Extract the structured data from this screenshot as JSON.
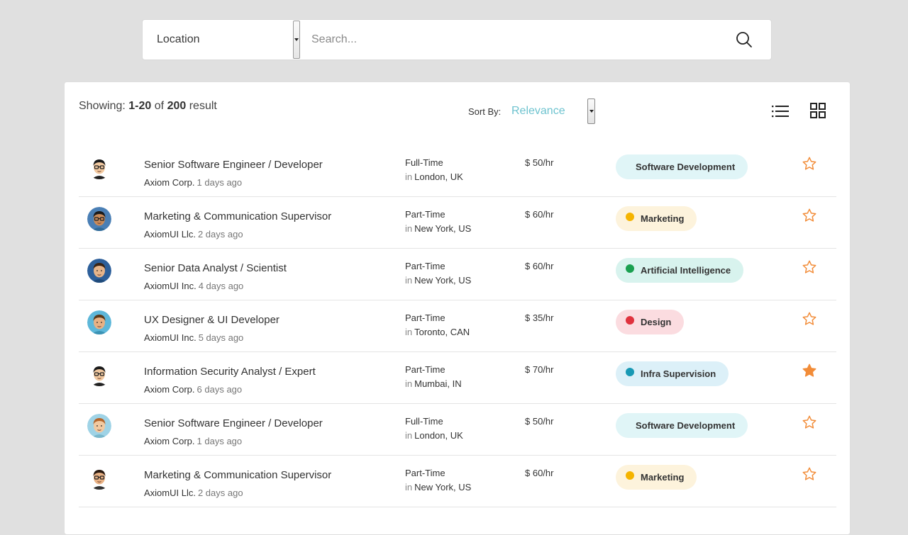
{
  "search": {
    "location_label": "Location",
    "placeholder": "Search..."
  },
  "results": {
    "showing_prefix": "Showing:",
    "range": "1-20",
    "of": "of",
    "total": "200",
    "suffix": "result",
    "sort_by_label": "Sort By:",
    "sort_value": "Relevance"
  },
  "colors": {
    "accent": "#6ec3cf",
    "star": "#f28c38"
  },
  "jobs": [
    {
      "title": "Senior Software Engineer / Developer",
      "company": "Axiom Corp.",
      "ago": "1 days ago",
      "type": "Full-Time",
      "in": "in",
      "location": "London, UK",
      "rate": "$ 50/hr",
      "tag": "Software Development",
      "tag_bg": "#e0f5f7",
      "dot": "",
      "starred": false
    },
    {
      "title": "Marketing & Communication Supervisor",
      "company": "AxiomUI Llc.",
      "ago": "2 days ago",
      "type": "Part-Time",
      "in": "in",
      "location": "New York, US",
      "rate": "$ 60/hr",
      "tag": "Marketing",
      "tag_bg": "#fdf3dc",
      "dot": "#f5b400",
      "starred": false
    },
    {
      "title": "Senior Data Analyst / Scientist",
      "company": "AxiomUI Inc.",
      "ago": "4 days ago",
      "type": "Part-Time",
      "in": "in",
      "location": "New York, US",
      "rate": "$ 60/hr",
      "tag": "Artificial Intelligence",
      "tag_bg": "#d8f3ee",
      "dot": "#1aa050",
      "starred": false
    },
    {
      "title": "UX Designer & UI Developer",
      "company": "AxiomUI Inc.",
      "ago": "5 days ago",
      "type": "Part-Time",
      "in": "in",
      "location": "Toronto, CAN",
      "rate": "$ 35/hr",
      "tag": "Design",
      "tag_bg": "#fbdce0",
      "dot": "#e0323e",
      "starred": false
    },
    {
      "title": "Information Security Analyst / Expert",
      "company": "Axiom Corp.",
      "ago": "6 days ago",
      "type": "Part-Time",
      "in": "in",
      "location": "Mumbai, IN",
      "rate": "$ 70/hr",
      "tag": "Infra Supervision",
      "tag_bg": "#dcf0f8",
      "dot": "#1899b4",
      "starred": true
    },
    {
      "title": "Senior Software Engineer / Developer",
      "company": "Axiom Corp.",
      "ago": "1 days ago",
      "type": "Full-Time",
      "in": "in",
      "location": "London, UK",
      "rate": "$ 50/hr",
      "tag": "Software Development",
      "tag_bg": "#e0f5f7",
      "dot": "",
      "starred": false
    },
    {
      "title": "Marketing & Communication Supervisor",
      "company": "AxiomUI Llc.",
      "ago": "2 days ago",
      "type": "Part-Time",
      "in": "in",
      "location": "New York, US",
      "rate": "$ 60/hr",
      "tag": "Marketing",
      "tag_bg": "#fdf3dc",
      "dot": "#f5b400",
      "starred": false
    }
  ]
}
